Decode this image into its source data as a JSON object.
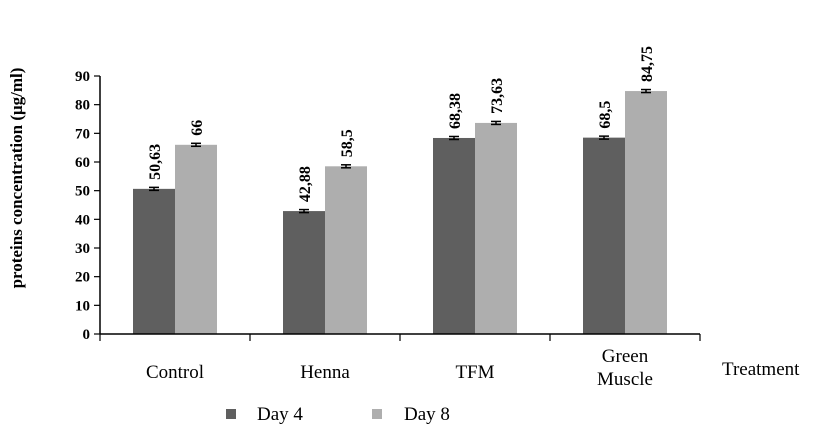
{
  "chart_data": {
    "type": "bar",
    "categories": [
      [
        "Control"
      ],
      [
        "Henna"
      ],
      [
        "TFM"
      ],
      [
        "Green",
        "Muscle"
      ]
    ],
    "series": [
      {
        "name": "Day 4",
        "values": [
          50.63,
          42.88,
          68.38,
          68.5
        ],
        "labels": [
          "50,63",
          "42,88",
          "68,38",
          "68,5"
        ],
        "color": "#5f5f5f"
      },
      {
        "name": "Day 8",
        "values": [
          66,
          58.5,
          73.63,
          84.75
        ],
        "labels": [
          "66",
          "58,5",
          "73,63",
          "84,75"
        ],
        "color": "#aeaeae"
      }
    ],
    "ylabel": "proteins concentration (μg/ml)",
    "xlabel": "Treatment",
    "ylim": [
      0,
      90
    ],
    "yticks": [
      0,
      10,
      20,
      30,
      40,
      50,
      60,
      70,
      80,
      90
    ],
    "error_bars": true,
    "grid": false,
    "legend": "bottom"
  }
}
